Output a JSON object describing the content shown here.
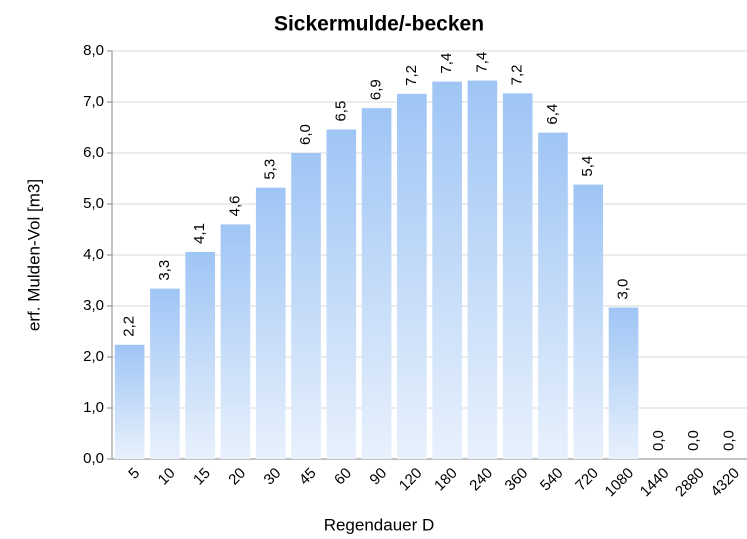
{
  "chart_data": {
    "type": "bar",
    "title": "Sickermulde/-becken",
    "x_label": "Regendauer D",
    "y_label": "erf. Mulden-Vol [m3]",
    "categories": [
      "5",
      "10",
      "15",
      "20",
      "30",
      "45",
      "60",
      "90",
      "120",
      "180",
      "240",
      "360",
      "540",
      "720",
      "1080",
      "1440",
      "2880",
      "4320"
    ],
    "values": [
      2.24,
      3.34,
      4.06,
      4.6,
      5.32,
      6.0,
      6.46,
      6.88,
      7.16,
      7.4,
      7.42,
      7.17,
      6.4,
      5.38,
      2.97,
      0,
      0,
      0
    ],
    "value_labels": [
      "2,2",
      "3,3",
      "4,1",
      "4,6",
      "5,3",
      "6,0",
      "6,5",
      "6,9",
      "7,2",
      "7,4",
      "7,4",
      "7,2",
      "6,4",
      "5,4",
      "3,0",
      "0,0",
      "0,0",
      "0,0"
    ],
    "color": "#9fc5f5",
    "ylim": [
      0,
      8
    ],
    "yticks": [
      {
        "value": 0,
        "label": "0,0"
      },
      {
        "value": 1,
        "label": "1,0"
      },
      {
        "value": 2,
        "label": "2,0"
      },
      {
        "value": 3,
        "label": "3,0"
      },
      {
        "value": 4,
        "label": "4,0"
      },
      {
        "value": 5,
        "label": "5,0"
      },
      {
        "value": 6,
        "label": "6,0"
      },
      {
        "value": 7,
        "label": "7,0"
      },
      {
        "value": 8,
        "label": "8,0"
      }
    ],
    "grid": true
  }
}
